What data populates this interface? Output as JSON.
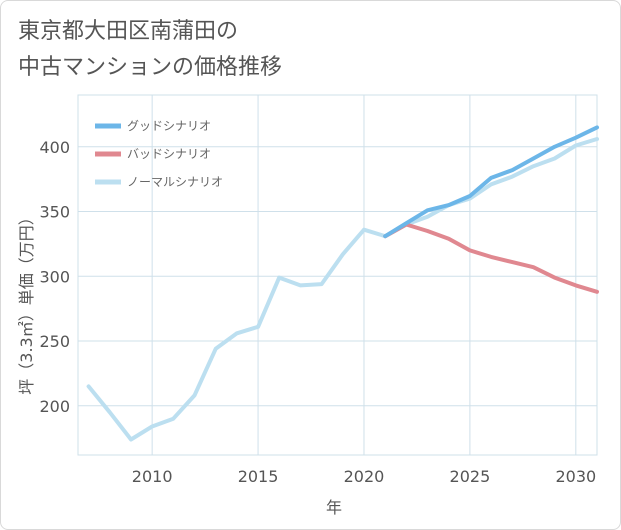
{
  "title": "東京都大田区南蒲田の\n中古マンションの価格推移",
  "chart_data": {
    "type": "line",
    "xlabel": "年",
    "ylabel": "坪（3.3㎡）単価（万円）",
    "xlim": [
      2006.5,
      2031
    ],
    "ylim": [
      162,
      440
    ],
    "xticks": [
      2010,
      2015,
      2020,
      2025,
      2030
    ],
    "yticks": [
      200,
      250,
      300,
      350,
      400
    ],
    "grid": true,
    "legend_position": "top-left",
    "series": [
      {
        "name": "グッドシナリオ",
        "color": "#6cb6e8",
        "x": [
          2021,
          2022,
          2023,
          2024,
          2025,
          2026,
          2027,
          2028,
          2029,
          2030,
          2031
        ],
        "values": [
          331,
          341,
          351,
          355,
          362,
          376,
          382,
          391,
          400,
          407,
          415
        ]
      },
      {
        "name": "バッドシナリオ",
        "color": "#e08890",
        "x": [
          2021,
          2022,
          2023,
          2024,
          2025,
          2026,
          2027,
          2028,
          2029,
          2030,
          2031
        ],
        "values": [
          331,
          340,
          335,
          329,
          320,
          315,
          311,
          307,
          299,
          293,
          288
        ]
      },
      {
        "name": "ノーマルシナリオ",
        "color": "#bcdff0",
        "x": [
          2007,
          2008,
          2009,
          2010,
          2011,
          2012,
          2013,
          2014,
          2015,
          2016,
          2017,
          2018,
          2019,
          2020,
          2021,
          2022,
          2023,
          2024,
          2025,
          2026,
          2027,
          2028,
          2029,
          2030,
          2031
        ],
        "values": [
          215,
          195,
          174,
          184,
          190,
          208,
          244,
          256,
          261,
          299,
          293,
          294,
          317,
          336,
          331,
          340,
          346,
          355,
          360,
          371,
          377,
          385,
          391,
          401,
          406
        ]
      }
    ]
  }
}
